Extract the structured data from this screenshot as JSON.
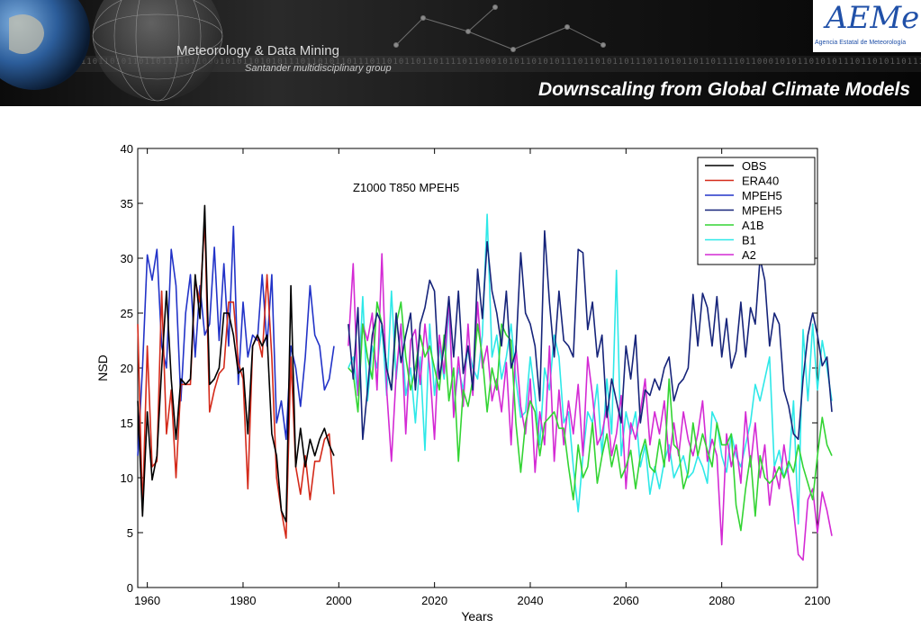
{
  "header": {
    "group_name": "Meteorology & Data Mining",
    "group_subtitle": "Santander multidisciplinary group",
    "slide_title": "Downscaling from Global Climate Models",
    "logo_mark": "AEMet",
    "logo_caption": "Agencia Estatal de Meteorología",
    "binary_text": "0111011010110111011010110110111101100010101101010111011010110111011010110110111101100010101101010111011010110111011010110110111101100010101101010111011010110111011010"
  },
  "chart_data": {
    "type": "line",
    "title": "Z1000 T850 MPEH5",
    "xlabel": "Years",
    "ylabel": "NSD",
    "xlim": [
      1958,
      2100
    ],
    "ylim": [
      0,
      40
    ],
    "xticks": [
      1960,
      1980,
      2000,
      2020,
      2040,
      2060,
      2080,
      2100
    ],
    "yticks": [
      0,
      5,
      10,
      15,
      20,
      25,
      30,
      35,
      40
    ],
    "grid": false,
    "legend_position": "top-right",
    "series": [
      {
        "name": "OBS",
        "color": "#000000",
        "x_start": 1958,
        "values": [
          17,
          6.5,
          16,
          9.8,
          12,
          20,
          27,
          19,
          13.5,
          19,
          18.5,
          19,
          28.5,
          24.5,
          34.8,
          18.5,
          19,
          20,
          25,
          25,
          23,
          19.5,
          20,
          14,
          22,
          23,
          22,
          23,
          14,
          12,
          7,
          6,
          27.5,
          11,
          14.5,
          11,
          13.5,
          12,
          13.5,
          14.5,
          13,
          12
        ]
      },
      {
        "name": "ERA40",
        "color": "#d42a1a",
        "x_start": 1958,
        "values": [
          24,
          7,
          22,
          11,
          11.5,
          27,
          14,
          18,
          10,
          18.5,
          18.5,
          18.5,
          28,
          26,
          33.5,
          16,
          18,
          19.5,
          20,
          26,
          26,
          20.5,
          19,
          9,
          22,
          23,
          21,
          28.5,
          21,
          10,
          7,
          4.5,
          21,
          11,
          8.5,
          12,
          8,
          11.5,
          11.5,
          13.5,
          14,
          8.5
        ]
      },
      {
        "name": "MPEH5",
        "color": "#2233c8",
        "x_start": 1958,
        "values": [
          12,
          20,
          30.3,
          28,
          30.8,
          22,
          20,
          30.8,
          27.5,
          17,
          25,
          28.5,
          21,
          27.5,
          23,
          24,
          31,
          22.5,
          29.5,
          22,
          32.9,
          18.5,
          26,
          21,
          23,
          22.5,
          28.5,
          22,
          28.5,
          15,
          17,
          13.5,
          22,
          20,
          16.5,
          21,
          27.5,
          23,
          22,
          18,
          19,
          22
        ]
      },
      {
        "name": "MPEH5",
        "color": "#16247a",
        "x_start": 2002,
        "values": [
          24,
          19,
          25.5,
          13.5,
          18,
          23,
          25,
          24,
          20,
          18,
          25,
          20.5,
          23,
          25,
          18,
          24,
          25.5,
          28,
          27,
          19,
          22,
          26.5,
          21,
          27,
          19.5,
          22,
          18,
          29,
          24.5,
          31.5,
          27,
          25,
          22,
          27,
          20,
          21.5,
          30.5,
          25,
          24,
          22,
          17,
          32.5,
          26,
          21,
          27,
          22.5,
          22,
          21,
          30.8,
          30.5,
          23.5,
          26,
          21,
          23,
          15.5,
          19,
          17,
          15,
          22,
          19,
          23,
          15,
          18,
          17.5,
          19,
          18,
          20,
          21,
          17,
          18.5,
          19,
          20,
          26.7,
          22,
          26.8,
          25.5,
          22,
          26.5,
          21,
          24.5,
          20,
          21.5,
          26,
          21,
          25.5,
          24,
          30,
          28,
          22,
          25,
          24,
          18,
          16.5,
          14,
          13.5,
          19,
          23,
          25,
          23,
          20.2,
          21,
          16
        ]
      },
      {
        "name": "A1B",
        "color": "#33d433",
        "x_start": 2002,
        "values": [
          20,
          19.5,
          16,
          24,
          21,
          19,
          26,
          24,
          20,
          18,
          24,
          26,
          21,
          18,
          20,
          23,
          21,
          22,
          20,
          18,
          23,
          17,
          20,
          11.5,
          18,
          16.5,
          19,
          24,
          21,
          16,
          20,
          18,
          24,
          23,
          22.5,
          15,
          10.5,
          15,
          17,
          16,
          12,
          15,
          15.5,
          16,
          14.5,
          14.5,
          11,
          8,
          13,
          10,
          11,
          15,
          9.5,
          12,
          14,
          11,
          13,
          10,
          11,
          12.5,
          9,
          12,
          13.5,
          11,
          10.5,
          13.5,
          11,
          19,
          13,
          12.5,
          9,
          10.5,
          15,
          12,
          14,
          12.5,
          11,
          15,
          13,
          13,
          14,
          7.5,
          5.2,
          9,
          12,
          6.5,
          12,
          10,
          9.5,
          10,
          11,
          10,
          11.5,
          10.5,
          13,
          11,
          9.5,
          8,
          12,
          15.5,
          13,
          12
        ]
      },
      {
        "name": "B1",
        "color": "#2ee8e8",
        "x_start": 2002,
        "values": [
          20,
          21,
          17.5,
          26.5,
          17,
          22,
          20,
          24,
          17.5,
          27,
          19,
          24,
          17.5,
          20,
          15,
          21,
          12.5,
          24,
          17.5,
          22,
          19,
          25.5,
          16,
          20,
          18,
          22,
          20,
          19,
          23,
          34,
          21,
          23,
          19,
          21,
          24,
          19,
          15.5,
          16,
          21,
          17.5,
          13,
          20,
          18,
          23,
          21,
          15,
          16,
          11,
          6.9,
          12,
          16,
          15,
          18.5,
          12,
          19,
          14,
          28.9,
          12,
          16,
          14,
          16,
          11,
          13,
          8.5,
          11,
          9,
          11.5,
          13,
          10,
          11,
          12,
          10,
          10.5,
          12,
          11,
          9.5,
          16,
          15,
          12,
          10.5,
          14,
          12,
          11,
          13,
          15,
          18.5,
          17,
          19,
          21,
          11,
          12.5,
          10,
          11,
          17,
          5.8,
          23.5,
          17,
          24,
          18,
          22.5,
          20,
          17
        ]
      },
      {
        "name": "A2",
        "color": "#d42ad4",
        "x_start": 2002,
        "values": [
          22,
          29.5,
          17.5,
          24,
          22.5,
          25,
          18,
          30.4,
          18,
          11.5,
          19.5,
          24,
          14,
          22.5,
          23.5,
          18.5,
          24,
          20,
          13.5,
          23,
          19.5,
          26.5,
          15.5,
          21,
          16.5,
          24,
          17.5,
          26,
          20,
          22,
          17,
          19,
          16,
          20.5,
          13,
          22,
          16.5,
          14,
          19,
          10.5,
          16,
          13,
          22,
          11.5,
          18,
          13,
          17,
          14,
          18.5,
          12,
          21,
          17.5,
          13,
          14,
          16.5,
          12,
          14,
          17.5,
          9,
          15,
          13.5,
          16,
          19,
          13,
          16,
          14,
          17,
          11.5,
          15,
          12,
          16,
          13.5,
          12,
          14,
          17,
          11.5,
          13.5,
          12,
          3.9,
          14,
          11,
          13,
          9.5,
          16,
          11,
          15,
          10,
          13,
          7.5,
          11,
          9,
          13,
          10,
          7,
          3,
          2.5,
          8,
          9,
          5,
          8.7,
          7,
          4.7
        ]
      }
    ]
  }
}
